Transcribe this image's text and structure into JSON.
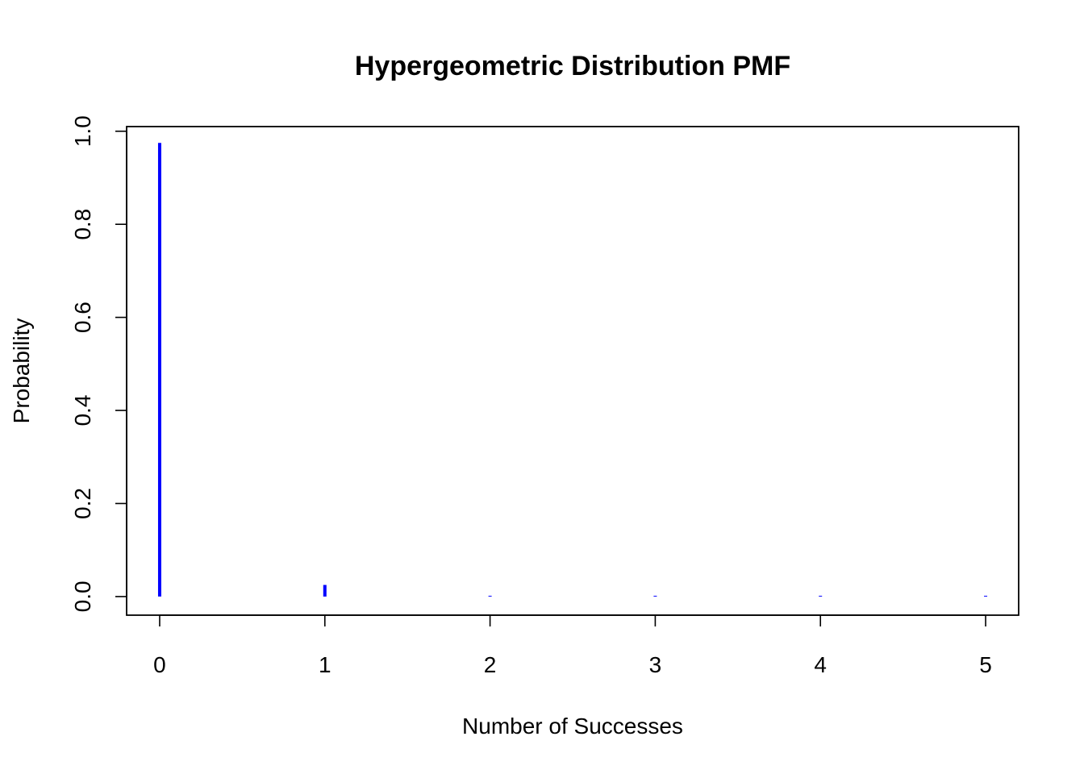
{
  "chart_data": {
    "type": "bar",
    "title": "Hypergeometric Distribution PMF",
    "xlabel": "Number of Successes",
    "ylabel": "Probability",
    "x": [
      0,
      1,
      2,
      3,
      4,
      5
    ],
    "values": [
      0.975,
      0.025,
      0.0003,
      2e-06,
      0.0,
      0.0
    ],
    "xlim": [
      -0.2,
      5.2
    ],
    "ylim": [
      -0.04,
      1.01
    ],
    "x_ticks": [
      0,
      1,
      2,
      3,
      4,
      5
    ],
    "x_tick_labels": [
      "0",
      "1",
      "2",
      "3",
      "4",
      "5"
    ],
    "y_ticks": [
      0.0,
      0.2,
      0.4,
      0.6,
      0.8,
      1.0
    ],
    "y_tick_labels": [
      "0.0",
      "0.2",
      "0.4",
      "0.6",
      "0.8",
      "1.0"
    ],
    "bar_color": "#0000ff",
    "grid": false,
    "legend": "none"
  }
}
